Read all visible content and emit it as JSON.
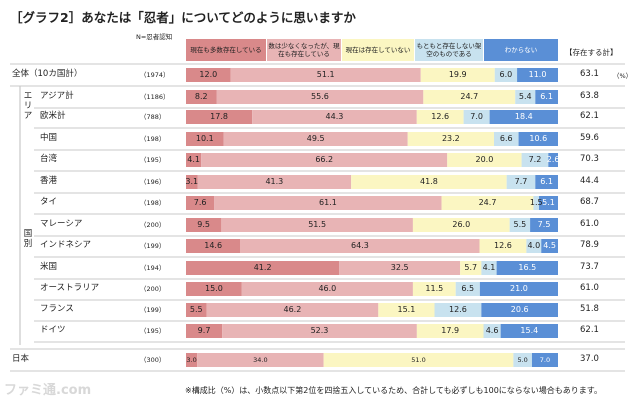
{
  "title": "［グラフ2］あなたは「忍者」についてどのように思いますか",
  "n_label": "N=忍者認知",
  "percent_label": "（%）",
  "header_labels": [
    "現在も多数存在している",
    "数は少なくなったが、現在も存在している",
    "現在は存在していない",
    "もともと存在しない架空のものである",
    "わからない"
  ],
  "total_header": "【存在する計】",
  "groups": {
    "area": "エリア",
    "country": "国別"
  },
  "footnote": "※構成比（%）は、小数点以下第2位を四捨五入しているため、合計しても必ずしも100にならない場合もあります。",
  "watermark": "ファミ通.com",
  "colors": [
    "#d9898a",
    "#e8b4b5",
    "#fbf6c2",
    "#c8e2ef",
    "#5a8fd6"
  ],
  "chart_data": {
    "type": "bar",
    "orientation": "horizontal",
    "stacked": true,
    "title": "［グラフ2］あなたは「忍者」についてどのように思いますか",
    "unit": "%",
    "series_names": [
      "現在も多数存在している",
      "数は少なくなったが、現在も存在している",
      "現在は存在していない",
      "もともと存在しない架空のものである",
      "わからない"
    ],
    "rows": [
      {
        "label": "全体（10カ国計）",
        "n": "（1974）",
        "values": [
          12.0,
          51.1,
          19.9,
          6.0,
          11.0
        ],
        "labels": [
          "12.0",
          "51.1",
          "19.9",
          "6.0",
          "11.0"
        ],
        "total": "63.1"
      },
      {
        "label": "アジア計",
        "n": "（1186）",
        "values": [
          8.2,
          55.6,
          24.7,
          5.4,
          6.1
        ],
        "labels": [
          "8.2",
          "55.6",
          "24.7",
          "5.4",
          "6.1"
        ],
        "total": "63.8"
      },
      {
        "label": "欧米計",
        "n": "（788）",
        "values": [
          17.8,
          44.3,
          12.6,
          7.0,
          18.4
        ],
        "labels": [
          "17.8",
          "44.3",
          "12.6",
          "7.0",
          "18.4"
        ],
        "total": "62.1"
      },
      {
        "label": "中国",
        "n": "（198）",
        "values": [
          10.1,
          49.5,
          23.2,
          6.6,
          10.6
        ],
        "labels": [
          "10.1",
          "49.5",
          "23.2",
          "6.6",
          "10.6"
        ],
        "total": "59.6"
      },
      {
        "label": "台湾",
        "n": "（195）",
        "values": [
          4.1,
          66.2,
          20.0,
          7.2,
          2.6
        ],
        "labels": [
          "4.1",
          "66.2",
          "20.0",
          "7.2",
          "2.6"
        ],
        "total": "70.3"
      },
      {
        "label": "香港",
        "n": "（196）",
        "values": [
          3.1,
          41.3,
          41.8,
          7.7,
          6.1
        ],
        "labels": [
          "3.1",
          "41.3",
          "41.8",
          "7.7",
          "6.1"
        ],
        "total": "44.4"
      },
      {
        "label": "タイ",
        "n": "（198）",
        "values": [
          7.6,
          61.1,
          24.7,
          1.5,
          5.1
        ],
        "labels": [
          "7.6",
          "61.1",
          "24.7",
          "1.5",
          "5.1"
        ],
        "total": "68.7"
      },
      {
        "label": "マレーシア",
        "n": "（200）",
        "values": [
          9.5,
          51.5,
          26.0,
          5.5,
          7.5
        ],
        "labels": [
          "9.5",
          "51.5",
          "26.0",
          "5.5",
          "7.5"
        ],
        "total": "61.0"
      },
      {
        "label": "インドネシア",
        "n": "（199）",
        "values": [
          14.6,
          64.3,
          12.6,
          4.0,
          4.5
        ],
        "labels": [
          "14.6",
          "64.3",
          "12.6",
          "4.0",
          "4.5"
        ],
        "total": "78.9"
      },
      {
        "label": "米国",
        "n": "（194）",
        "values": [
          41.2,
          32.5,
          5.7,
          4.1,
          16.5
        ],
        "labels": [
          "41.2",
          "32.5",
          "5.7",
          "4.1",
          "16.5"
        ],
        "total": "73.7"
      },
      {
        "label": "オーストラリア",
        "n": "（200）",
        "values": [
          15.0,
          46.0,
          11.5,
          6.5,
          21.0
        ],
        "labels": [
          "15.0",
          "46.0",
          "11.5",
          "6.5",
          "21.0"
        ],
        "total": "61.0"
      },
      {
        "label": "フランス",
        "n": "（199）",
        "values": [
          5.5,
          46.2,
          15.1,
          12.6,
          20.6
        ],
        "labels": [
          "5.5",
          "46.2",
          "15.1",
          "12.6",
          "20.6"
        ],
        "total": "51.8"
      },
      {
        "label": "ドイツ",
        "n": "（195）",
        "values": [
          9.7,
          52.3,
          17.9,
          4.6,
          15.4
        ],
        "labels": [
          "9.7",
          "52.3",
          "17.9",
          "4.6",
          "15.4"
        ],
        "total": "62.1"
      },
      {
        "label": "日本",
        "n": "（300）",
        "values": [
          3.0,
          34.0,
          51.0,
          5.0,
          7.0
        ],
        "labels": [
          "3.0",
          "34.0",
          "51.0",
          "5.0",
          "7.0"
        ],
        "total": "37.0"
      }
    ]
  }
}
